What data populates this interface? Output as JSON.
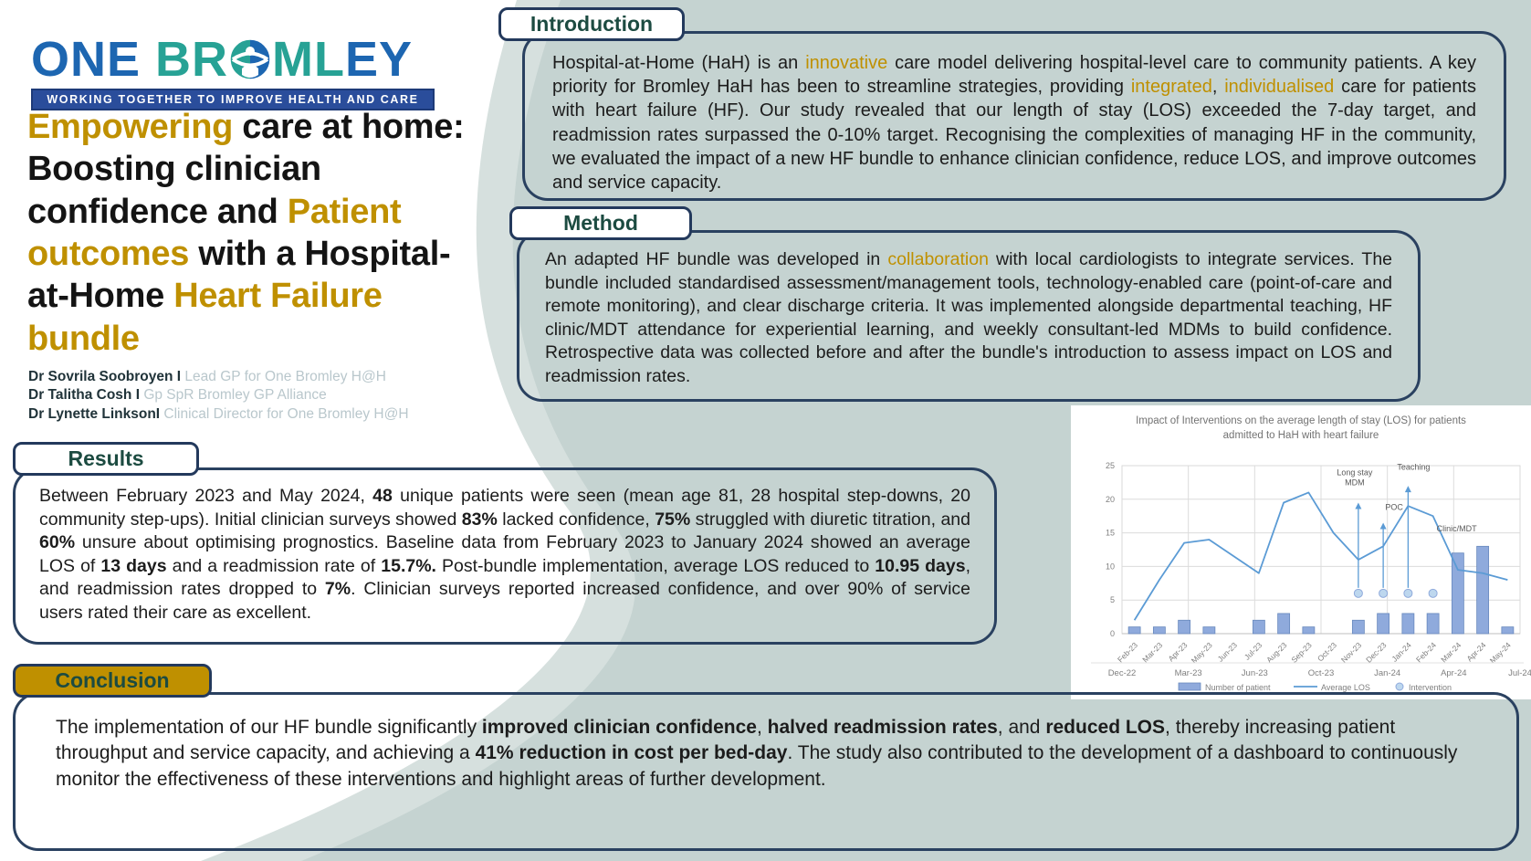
{
  "page": {
    "bg": "#c5d3d1",
    "accent_gold": "#bf9000",
    "heading_teal": "#1c4b41",
    "border_navy": "#2a4160"
  },
  "logo": {
    "word1": "ONE",
    "word2a": "BR",
    "word2b": "ML",
    "word2c": "EY",
    "tagline": "WORKING TOGETHER TO IMPROVE HEALTH AND CARE"
  },
  "title": {
    "segments": [
      {
        "t": "Empowering ",
        "c": "gold"
      },
      {
        "t": "care at home: Boosting clinician confidence and "
      },
      {
        "t": "Patient outcomes ",
        "c": "gold"
      },
      {
        "t": "with a Hospital-at-Home "
      },
      {
        "t": "Heart Failure bundle",
        "c": "gold"
      }
    ]
  },
  "authors": [
    {
      "name": "Dr Sovrila Soobroyen I",
      "role": " Lead GP for One Bromley H@H"
    },
    {
      "name": "Dr Talitha Cosh I",
      "role": " Gp SpR Bromley GP Alliance"
    },
    {
      "name": "Dr Lynette LinksonI",
      "role": " Clinical Director for One Bromley H@H"
    }
  ],
  "sections": {
    "introduction": {
      "heading": "Introduction",
      "segments": [
        {
          "t": "Hospital-at-Home (HaH) is an "
        },
        {
          "t": "innovative",
          "c": "gold"
        },
        {
          "t": " care model delivering hospital-level care to community patients. A key priority for Bromley HaH has been to streamline strategies, providing "
        },
        {
          "t": "integrated",
          "c": "gold"
        },
        {
          "t": ", "
        },
        {
          "t": "individualised",
          "c": "gold"
        },
        {
          "t": " care for patients with heart failure (HF). Our study revealed that our length of stay (LOS) exceeded the 7-day target, and readmission rates surpassed the 0-10% target. Recognising the complexities of managing HF in the community, we evaluated the impact of a new HF bundle to enhance clinician confidence, reduce LOS, and improve outcomes and service capacity."
        }
      ]
    },
    "method": {
      "heading": "Method",
      "segments": [
        {
          "t": "An adapted HF bundle was developed in "
        },
        {
          "t": "collaboration",
          "c": "gold"
        },
        {
          "t": " with local cardiologists to integrate services. The bundle included standardised assessment/management tools, technology-enabled care (point-of-care and remote monitoring), and clear discharge criteria. It was implemented alongside departmental teaching, HF clinic/MDT attendance for experiential learning, and weekly consultant-led MDMs to build confidence. Retrospective data was collected before and after the bundle's introduction to assess impact on LOS and readmission rates."
        }
      ]
    },
    "results": {
      "heading": "Results",
      "segments": [
        {
          "t": "Between February 2023 and May 2024, "
        },
        {
          "t": "48",
          "b": 1
        },
        {
          "t": " unique patients were seen (mean age 81, 28 hospital step-downs, 20 community step-ups). Initial clinician surveys showed "
        },
        {
          "t": "83%",
          "b": 1
        },
        {
          "t": " lacked confidence, "
        },
        {
          "t": "75%",
          "b": 1
        },
        {
          "t": " struggled with diuretic titration, and "
        },
        {
          "t": "60%",
          "b": 1
        },
        {
          "t": " unsure about optimising prognostics. Baseline data from February 2023 to January 2024 showed an average LOS of "
        },
        {
          "t": "13 days",
          "b": 1
        },
        {
          "t": " and a readmission rate of "
        },
        {
          "t": "15.7%.",
          "b": 1
        },
        {
          "t": " Post-bundle implementation, average LOS reduced to "
        },
        {
          "t": "10.95 days",
          "b": 1
        },
        {
          "t": ", and readmission rates dropped to "
        },
        {
          "t": "7%",
          "b": 1
        },
        {
          "t": ". Clinician surveys reported increased confidence, and over 90% of service users rated their care as excellent."
        }
      ]
    },
    "conclusion": {
      "heading": "Conclusion",
      "segments": [
        {
          "t": "The implementation of our HF bundle significantly "
        },
        {
          "t": "improved clinician confidence",
          "b": 1
        },
        {
          "t": ", "
        },
        {
          "t": "halved readmission rates",
          "b": 1
        },
        {
          "t": ", and "
        },
        {
          "t": "reduced LOS",
          "b": 1
        },
        {
          "t": ", thereby increasing patient throughput and service capacity, and achieving a "
        },
        {
          "t": "41% reduction in cost per bed-day",
          "b": 1
        },
        {
          "t": ". The study also contributed to the development of a dashboard to continuously monitor the effectiveness of these interventions and highlight areas of further development."
        }
      ]
    }
  },
  "chart_data": {
    "type": "bar",
    "title": "Impact of Interventions on the average length of stay (LOS) for patients admitted to HaH with heart failure",
    "title_lines": [
      "Impact of Interventions on the average length of stay (LOS) for patients",
      "admitted to HaH with heart failure"
    ],
    "categories": [
      "Feb-23",
      "Mar-23",
      "Apr-23",
      "May-23",
      "Jun-23",
      "Jul-23",
      "Aug-23",
      "Sep-23",
      "Oct-23",
      "Nov-23",
      "Dec-23",
      "Jan-24",
      "Feb-24",
      "Mar-24",
      "Apr-24",
      "May-24"
    ],
    "series": [
      {
        "name": "Number of patient",
        "type": "bar",
        "color": "#8faadc",
        "values": [
          1,
          1,
          2,
          1,
          0,
          2,
          3,
          1,
          0,
          2,
          3,
          3,
          3,
          12,
          13,
          1
        ]
      },
      {
        "name": "Average LOS",
        "type": "line",
        "color": "#5b9bd5",
        "values": [
          2,
          8,
          13.5,
          14,
          11.5,
          9,
          19.5,
          21,
          15,
          11,
          13,
          19,
          17.5,
          9.5,
          9,
          8
        ]
      },
      {
        "name": "Intervention",
        "type": "scatter",
        "color": "#bdd7ee",
        "points": [
          {
            "x": "Nov-23",
            "y": 6
          },
          {
            "x": "Dec-23",
            "y": 6
          },
          {
            "x": "Jan-24",
            "y": 6
          },
          {
            "x": "Feb-24",
            "y": 6
          }
        ]
      }
    ],
    "annotations": [
      {
        "label": "Long stay\nMDM",
        "x": "Nov-23",
        "arrow_to": 19.5,
        "label_y": 23.6,
        "label_dx": -4
      },
      {
        "label": "POC",
        "x": "Dec-23",
        "arrow_to": 16.5,
        "label_y": 18.4,
        "label_dx": 12
      },
      {
        "label": "Teaching",
        "x": "Jan-24",
        "arrow_to": 22,
        "label_y": 24.4,
        "label_dx": 6
      },
      {
        "label": "Clinic/MDT",
        "x": "Feb-24",
        "arrow_to": null,
        "label_y": 15.2,
        "label_dx": 26
      }
    ],
    "ylim": [
      0,
      25
    ],
    "yticks": [
      0,
      5,
      10,
      15,
      20,
      25
    ],
    "secondary_axis": [
      "Dec-22",
      "Mar-23",
      "Jun-23",
      "Oct-23",
      "Jan-24",
      "Apr-24",
      "Jul-24"
    ],
    "legend_position": "bottom",
    "grid": true
  }
}
